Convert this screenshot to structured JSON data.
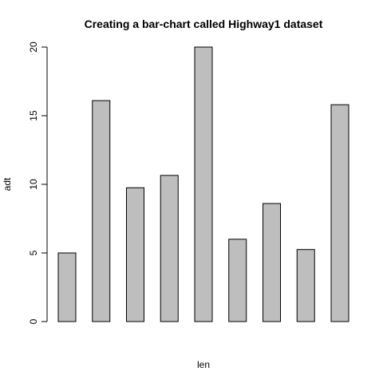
{
  "chart_data": {
    "type": "bar",
    "title": "Creating a bar-chart called Highway1 dataset",
    "xlabel": "len",
    "ylabel": "adt",
    "ylim": [
      0,
      20
    ],
    "yticks": [
      0,
      5,
      10,
      15,
      20
    ],
    "values": [
      5.0,
      16.1,
      9.75,
      10.65,
      20.0,
      6.0,
      8.6,
      5.25,
      15.8
    ],
    "grid": false,
    "legend": "none",
    "bar_fill": "#bebebe",
    "bar_stroke": "#000000"
  }
}
